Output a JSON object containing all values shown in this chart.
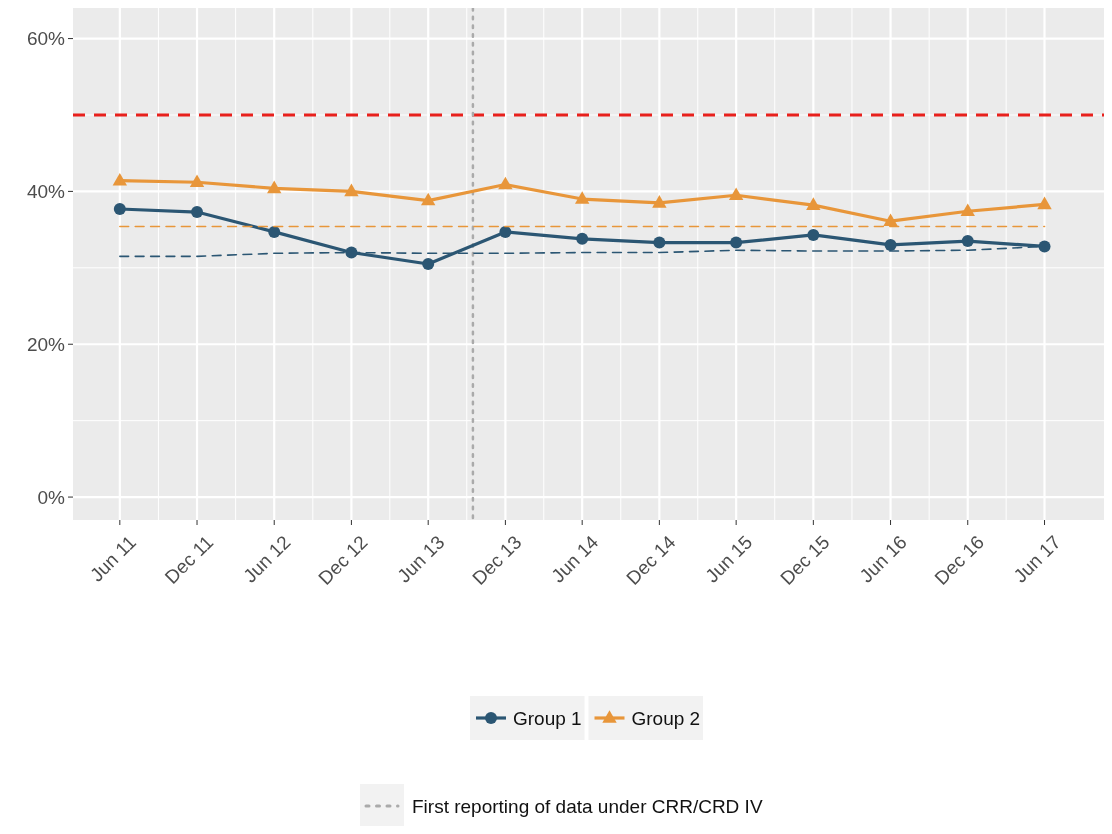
{
  "chart_data": {
    "type": "line",
    "x": [
      "2011-06",
      "2011-12",
      "2012-06",
      "2012-12",
      "2013-06",
      "2013-12",
      "2014-06",
      "2014-12",
      "2015-06",
      "2015-12",
      "2016-06",
      "2016-12",
      "2017-06"
    ],
    "xlim": [
      "2011-02-10",
      "2017-10-20"
    ],
    "xticks": [
      {
        "value": "2011-06",
        "label": "Jun 11"
      },
      {
        "value": "2011-12",
        "label": "Dec 11"
      },
      {
        "value": "2012-06",
        "label": "Jun 12"
      },
      {
        "value": "2012-12",
        "label": "Dec 12"
      },
      {
        "value": "2013-06",
        "label": "Jun 13"
      },
      {
        "value": "2013-12",
        "label": "Dec 13"
      },
      {
        "value": "2014-06",
        "label": "Jun 14"
      },
      {
        "value": "2014-12",
        "label": "Dec 14"
      },
      {
        "value": "2015-06",
        "label": "Jun 15"
      },
      {
        "value": "2015-12",
        "label": "Dec 15"
      },
      {
        "value": "2016-06",
        "label": "Jun 16"
      },
      {
        "value": "2016-12",
        "label": "Dec 16"
      },
      {
        "value": "2017-06",
        "label": "Jun 17"
      }
    ],
    "ylim": [
      -3,
      64
    ],
    "yticks": [
      {
        "value": 0,
        "label": "0%"
      },
      {
        "value": 20,
        "label": "20%"
      },
      {
        "value": 40,
        "label": "40%"
      },
      {
        "value": 60,
        "label": "60%"
      }
    ],
    "grid": true,
    "legend": "bottom",
    "series": [
      {
        "name": "Group 1",
        "color": "#2b5673",
        "marker": "circle",
        "line_style": "solid",
        "values": [
          37.7,
          37.3,
          34.7,
          32.0,
          30.5,
          34.7,
          33.8,
          33.3,
          33.3,
          34.3,
          33.0,
          33.5,
          32.8
        ]
      },
      {
        "name": "Group 2",
        "color": "#e8963a",
        "marker": "triangle",
        "line_style": "solid",
        "values": [
          41.4,
          41.2,
          40.4,
          40.0,
          38.8,
          40.9,
          39.0,
          38.5,
          39.5,
          38.2,
          36.1,
          37.4,
          38.3
        ]
      },
      {
        "color": "#2b5673",
        "marker": "none",
        "line_style": "dashed",
        "values": [
          31.5,
          31.5,
          31.9,
          32.0,
          31.9,
          31.9,
          32.0,
          32.0,
          32.3,
          32.2,
          32.2,
          32.3,
          32.8
        ]
      },
      {
        "color": "#e8963a",
        "marker": "none",
        "line_style": "dashed",
        "values": [
          35.4,
          35.4,
          35.4,
          35.4,
          35.4,
          35.4,
          35.4,
          35.4,
          35.4,
          35.4,
          35.4,
          35.4,
          35.4
        ]
      }
    ],
    "ref_lines": [
      {
        "axis": "y",
        "value": 50,
        "color": "#e8201c",
        "line_style": "dashed"
      },
      {
        "axis": "x",
        "value": "2013-09-15",
        "label": "First reporting of data under CRR/CRD IV",
        "color": "#aaaaaa",
        "line_style": "dotted"
      }
    ]
  }
}
